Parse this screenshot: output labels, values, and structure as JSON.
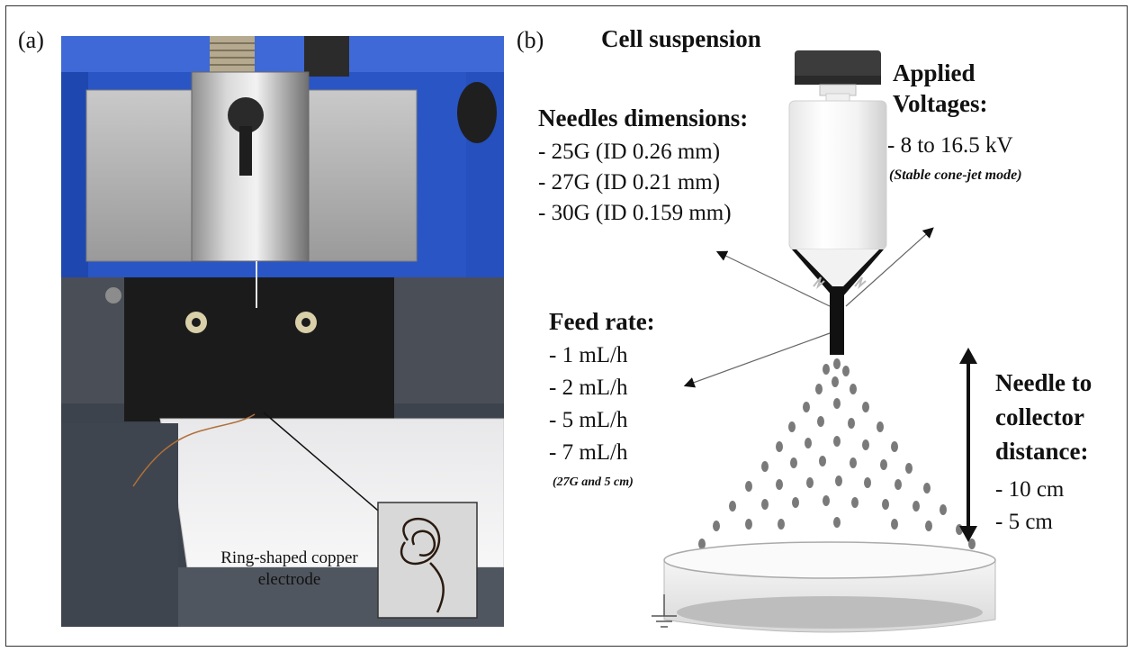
{
  "panel_a": {
    "label": "(a)",
    "inset_label_line1": "Ring-shaped copper",
    "inset_label_line2": "electrode"
  },
  "panel_b": {
    "label": "(b)",
    "cell_suspension": "Cell suspension",
    "needles": {
      "title": "Needles dimensions:",
      "items": [
        "- 25G (ID 0.26 mm)",
        "- 27G (ID 0.21 mm)",
        "- 30G (ID 0.159 mm)"
      ]
    },
    "voltage": {
      "title_line1": "Applied",
      "title_line2": "Voltages:",
      "value": "- 8 to 16.5 kV",
      "note": "(Stable cone-jet mode)"
    },
    "feed_rate": {
      "title": "Feed rate:",
      "items": [
        "- 1 mL/h",
        "- 2 mL/h",
        "- 5 mL/h",
        "- 7 mL/h"
      ],
      "note": "(27G and 5 cm)"
    },
    "distance": {
      "title_line1": "Needle to",
      "title_line2": "collector",
      "title_line3": "distance:",
      "items": [
        "- 10 cm",
        "- 5 cm"
      ]
    }
  },
  "colors": {
    "frame": "#333333",
    "syringe_cap": "#3c3c3c",
    "droplets": "#7a7a7a",
    "needle": "#111111",
    "photo_blue": "#2a55c4",
    "photo_metal": "#b8b8b8"
  }
}
